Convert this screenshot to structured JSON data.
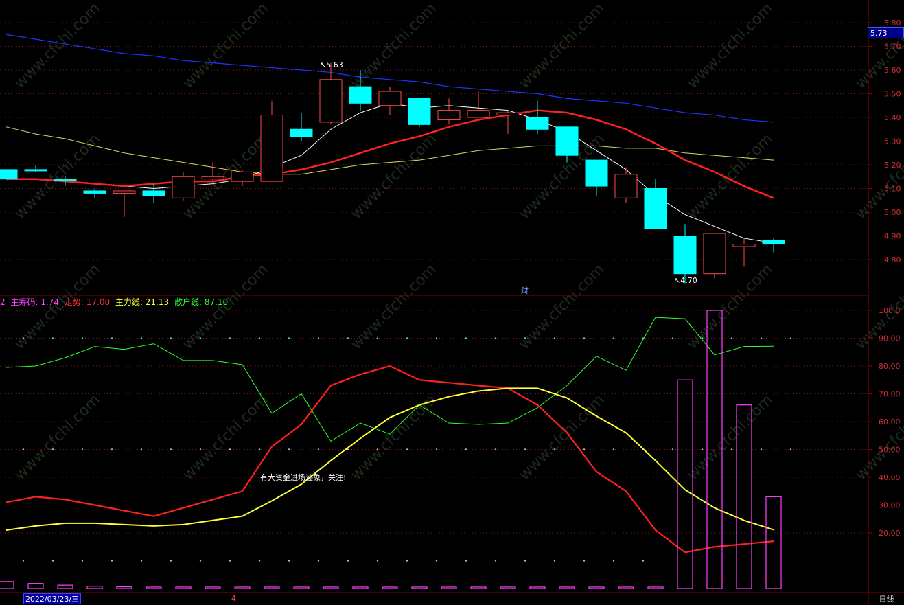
{
  "colors": {
    "background": "#000000",
    "frame": "#8b0000",
    "grid": "#7a1a1a",
    "up_candle": "#ff4a4a",
    "down_candle": "#00ffff",
    "ma_white": "#ffffff",
    "ma_red": "#ff2020",
    "ma_yellow": "#d8d860",
    "ma_blue": "#1f33ff",
    "zcm": "#ff40ff",
    "zs": "#ff2020",
    "zlx": "#ffff30",
    "shx": "#30ff30",
    "bar": "#ff40ff"
  },
  "price_axis": {
    "labels": [
      "5.80",
      "5.70",
      "5.60",
      "5.50",
      "5.40",
      "5.30",
      "5.20",
      "5.10",
      "5.00",
      "4.90",
      "4.80"
    ],
    "current_price": "5.73"
  },
  "indicator_axis": {
    "labels": [
      "100.0",
      "90.00",
      "80.00",
      "70.00",
      "60.00",
      "50.00",
      "40.00",
      "30.00",
      "20.00"
    ]
  },
  "chart_data": {
    "type": "candlestick",
    "candles": [
      {
        "o": 5.18,
        "h": 5.18,
        "l": 5.14,
        "c": 5.14
      },
      {
        "o": 5.18,
        "h": 5.2,
        "l": 5.17,
        "c": 5.175
      },
      {
        "o": 5.14,
        "h": 5.15,
        "l": 5.11,
        "c": 5.135
      },
      {
        "o": 5.09,
        "h": 5.1,
        "l": 5.06,
        "c": 5.08
      },
      {
        "o": 5.08,
        "h": 5.09,
        "l": 4.98,
        "c": 5.09
      },
      {
        "o": 5.09,
        "h": 5.12,
        "l": 5.04,
        "c": 5.07
      },
      {
        "o": 5.06,
        "h": 5.17,
        "l": 5.05,
        "c": 5.15
      },
      {
        "o": 5.14,
        "h": 5.21,
        "l": 5.12,
        "c": 5.15
      },
      {
        "o": 5.13,
        "h": 5.18,
        "l": 5.11,
        "c": 5.17
      },
      {
        "o": 5.13,
        "h": 5.47,
        "l": 5.13,
        "c": 5.41
      },
      {
        "o": 5.35,
        "h": 5.42,
        "l": 5.3,
        "c": 5.32
      },
      {
        "o": 5.38,
        "h": 5.63,
        "l": 5.37,
        "c": 5.56
      },
      {
        "o": 5.53,
        "h": 5.6,
        "l": 5.43,
        "c": 5.46
      },
      {
        "o": 5.45,
        "h": 5.53,
        "l": 5.41,
        "c": 5.51
      },
      {
        "o": 5.48,
        "h": 5.48,
        "l": 5.36,
        "c": 5.37
      },
      {
        "o": 5.39,
        "h": 5.48,
        "l": 5.37,
        "c": 5.43
      },
      {
        "o": 5.4,
        "h": 5.51,
        "l": 5.4,
        "c": 5.43
      },
      {
        "o": 5.41,
        "h": 5.43,
        "l": 5.33,
        "c": 5.42
      },
      {
        "o": 5.4,
        "h": 5.47,
        "l": 5.33,
        "c": 5.35
      },
      {
        "o": 5.36,
        "h": 5.36,
        "l": 5.21,
        "c": 5.24
      },
      {
        "o": 5.22,
        "h": 5.22,
        "l": 5.07,
        "c": 5.11
      },
      {
        "o": 5.06,
        "h": 5.19,
        "l": 5.04,
        "c": 5.16
      },
      {
        "o": 5.1,
        "h": 5.14,
        "l": 4.93,
        "c": 4.93
      },
      {
        "o": 4.9,
        "h": 4.95,
        "l": 4.7,
        "c": 4.74
      },
      {
        "o": 4.74,
        "h": 4.91,
        "l": 4.72,
        "c": 4.91
      },
      {
        "o": 4.855,
        "h": 4.89,
        "l": 4.77,
        "c": 4.865
      },
      {
        "o": 4.88,
        "h": 4.89,
        "l": 4.83,
        "c": 4.865
      }
    ],
    "ma_white": [
      5.14,
      5.14,
      5.13,
      5.12,
      5.11,
      5.1,
      5.11,
      5.12,
      5.14,
      5.19,
      5.24,
      5.35,
      5.42,
      5.46,
      5.44,
      5.45,
      5.44,
      5.43,
      5.39,
      5.34,
      5.26,
      5.18,
      5.07,
      4.99,
      4.94,
      4.89,
      4.87
    ],
    "ma_red": [
      5.14,
      5.14,
      5.13,
      5.12,
      5.11,
      5.12,
      5.13,
      5.13,
      5.15,
      5.16,
      5.18,
      5.21,
      5.25,
      5.29,
      5.32,
      5.36,
      5.39,
      5.41,
      5.43,
      5.42,
      5.39,
      5.35,
      5.29,
      5.22,
      5.17,
      5.11,
      5.06
    ],
    "ma_yellow": [
      5.36,
      5.33,
      5.31,
      5.28,
      5.25,
      5.23,
      5.21,
      5.19,
      5.17,
      5.16,
      5.16,
      5.18,
      5.2,
      5.21,
      5.22,
      5.24,
      5.26,
      5.27,
      5.28,
      5.28,
      5.28,
      5.27,
      5.27,
      5.25,
      5.24,
      5.23,
      5.22
    ],
    "ma_blue": [
      5.75,
      5.73,
      5.71,
      5.69,
      5.67,
      5.66,
      5.64,
      5.63,
      5.62,
      5.61,
      5.6,
      5.59,
      5.57,
      5.56,
      5.55,
      5.53,
      5.52,
      5.51,
      5.5,
      5.48,
      5.47,
      5.46,
      5.44,
      5.42,
      5.41,
      5.39,
      5.38
    ],
    "high_marker": "5.63",
    "low_marker": "4.70",
    "indicator": {
      "zs": [
        31,
        33,
        32,
        30,
        28,
        26,
        29,
        32,
        35,
        51,
        59,
        73,
        77,
        80,
        75,
        74,
        73,
        72,
        66,
        56,
        42,
        35,
        21,
        13,
        15,
        16,
        17
      ],
      "zlx": [
        21,
        22.5,
        23.5,
        23.5,
        23,
        22.5,
        23,
        24.5,
        26,
        31.5,
        37.5,
        46,
        54,
        61.5,
        66,
        69,
        71,
        72,
        72,
        68.5,
        62,
        56,
        46,
        35.5,
        29,
        24.5,
        21.13
      ],
      "shx": [
        79.5,
        80,
        83,
        87,
        86,
        88,
        82,
        82,
        80.5,
        63,
        70,
        53,
        59.5,
        55.5,
        66,
        59.5,
        59,
        59.5,
        65,
        73,
        83.5,
        78.5,
        97.5,
        97,
        84,
        87,
        87.1
      ],
      "bars": [
        2.5,
        1.8,
        1.2,
        0.8,
        0.6,
        0.5,
        0.5,
        0.5,
        0.5,
        0.5,
        0.5,
        0.5,
        0.5,
        0.5,
        0.5,
        0.5,
        0.5,
        0.5,
        0.5,
        0.5,
        0.5,
        0.5,
        0.5,
        75,
        100,
        66,
        33
      ]
    }
  },
  "legend": {
    "prefix": "2",
    "zcm": "主筹码: 1.74",
    "zs": "走势: 17.00",
    "zlx": "主力线: 21.13",
    "shx": "散户线: 87.10"
  },
  "alert_text": "有大资金进场迹象，关注!",
  "fin_marker": "财",
  "status": {
    "date": "2022/03/23/三",
    "marker": "4",
    "period": "日线"
  },
  "watermark": "www.cfchi.com"
}
